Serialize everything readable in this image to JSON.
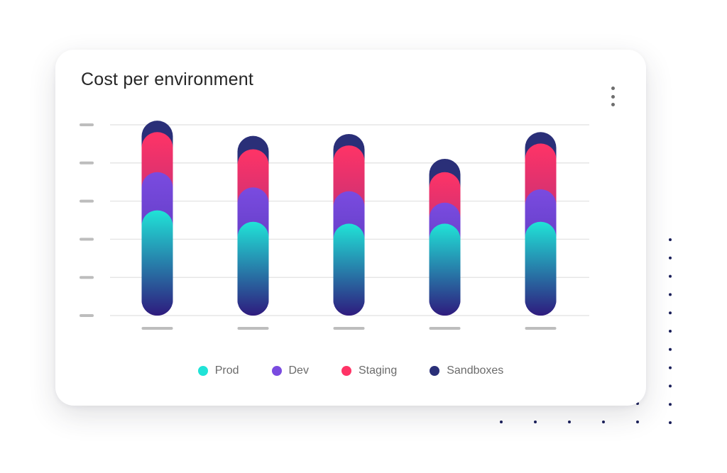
{
  "card": {
    "title": "Cost per environment"
  },
  "icons": {
    "menu": "more-vertical-icon"
  },
  "colors": {
    "prod_top": "#20e3d7",
    "prod_bottom": "#2e1b7e",
    "dev": "#7a4be0",
    "staging": "#ff3366",
    "sandboxes": "#2a2f78",
    "gridline": "#e6e6e6",
    "tick": "#bdbdbd",
    "decor_dots": "#1a1f5a"
  },
  "chart_data": {
    "type": "bar",
    "stacked": true,
    "title": "Cost per environment",
    "xlabel": "",
    "ylabel": "",
    "categories": [
      "",
      "",
      "",
      "",
      ""
    ],
    "ylim": [
      0,
      5
    ],
    "y_gridlines": 6,
    "grid": true,
    "legend_position": "bottom",
    "series": [
      {
        "name": "Prod",
        "values": [
          2.35,
          2.05,
          2.0,
          2.0,
          2.05
        ]
      },
      {
        "name": "Dev",
        "values": [
          1.0,
          0.9,
          0.85,
          0.55,
          0.85
        ]
      },
      {
        "name": "Staging",
        "values": [
          1.05,
          1.0,
          1.2,
          0.8,
          1.2
        ]
      },
      {
        "name": "Sandboxes",
        "values": [
          0.3,
          0.35,
          0.3,
          0.35,
          0.3
        ]
      }
    ]
  }
}
